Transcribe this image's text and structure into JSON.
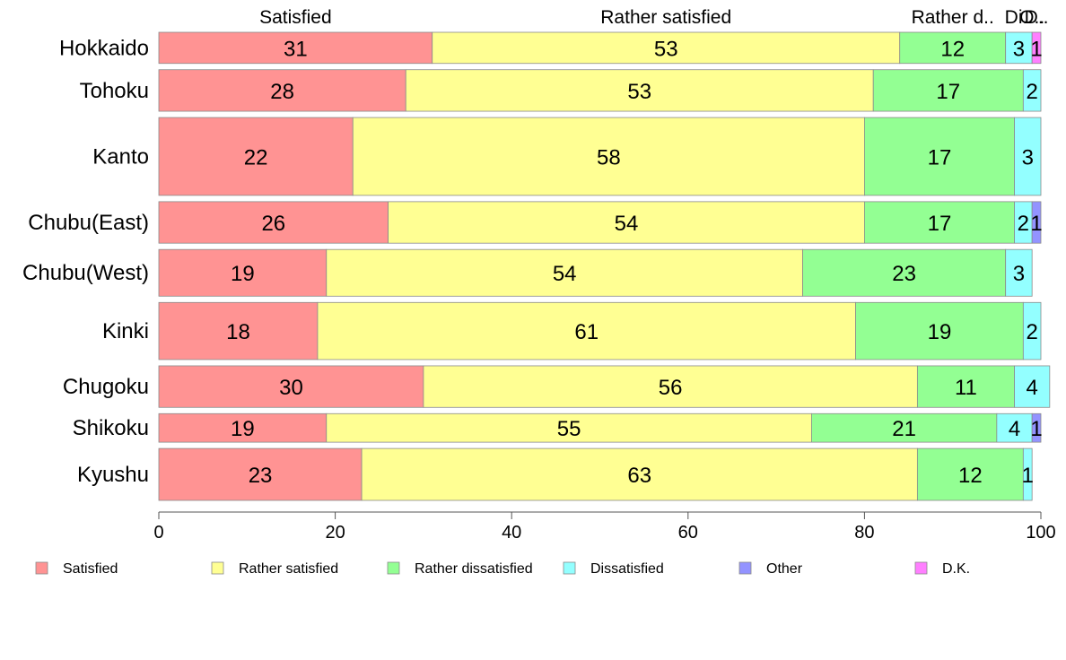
{
  "chart_data": {
    "type": "bar",
    "orientation": "horizontal",
    "stacked": true,
    "categories": [
      "Hokkaido",
      "Tohoku",
      "Kanto",
      "Chubu(East)",
      "Chubu(West)",
      "Kinki",
      "Chugoku",
      "Shikoku",
      "Kyushu"
    ],
    "series": [
      {
        "name": "Satisfied",
        "color": "#ff9393",
        "values": [
          31,
          28,
          22,
          26,
          19,
          18,
          30,
          19,
          23
        ]
      },
      {
        "name": "Rather satisfied",
        "color": "#ffff93",
        "values": [
          53,
          53,
          58,
          54,
          54,
          61,
          56,
          55,
          63
        ]
      },
      {
        "name": "Rather dissatisfied",
        "color": "#93ff93",
        "values": [
          12,
          17,
          17,
          17,
          23,
          19,
          11,
          21,
          12
        ]
      },
      {
        "name": "Dissatisfied",
        "color": "#93ffff",
        "values": [
          3,
          2,
          3,
          2,
          3,
          2,
          4,
          4,
          1
        ]
      },
      {
        "name": "Other",
        "color": "#9393ff",
        "values": [
          0,
          0,
          0,
          1,
          0,
          0,
          0,
          1,
          0
        ]
      },
      {
        "name": "D.K.",
        "color": "#ff7fff",
        "values": [
          1,
          0,
          0,
          0,
          0,
          0,
          0,
          0,
          0
        ]
      }
    ],
    "bar_weights": [
      0.6,
      0.8,
      1.5,
      0.8,
      0.9,
      1.1,
      0.8,
      0.55,
      1.0
    ],
    "top_labels": [
      "Satisfied",
      "Rather satisfied",
      "Rather d..",
      "Di..",
      "O..",
      "D.."
    ],
    "xlim": [
      0,
      100
    ],
    "xticks": [
      0,
      20,
      40,
      60,
      80,
      100
    ],
    "legend_position": "bottom"
  }
}
